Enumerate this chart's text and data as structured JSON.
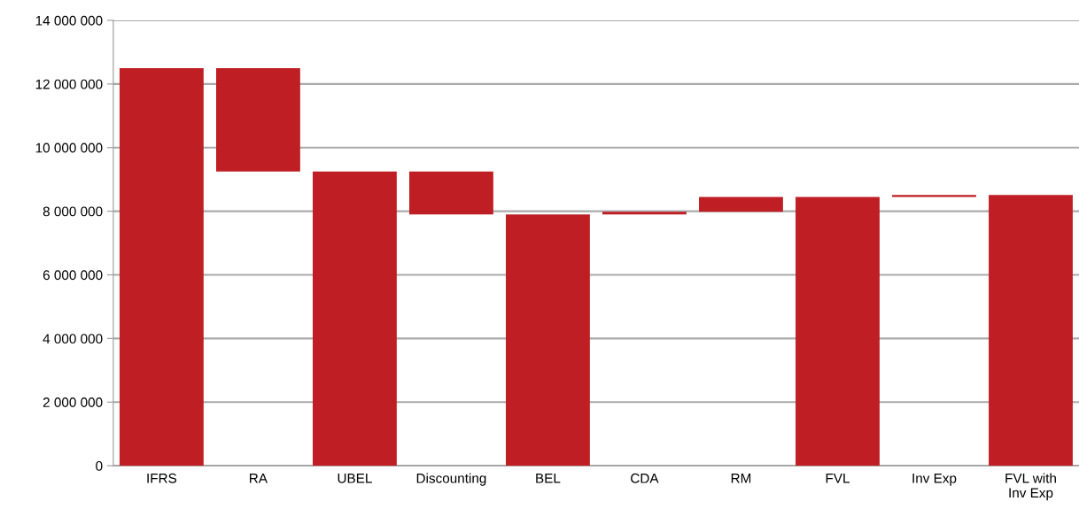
{
  "chart_data": {
    "type": "bar",
    "categories": [
      "IFRS",
      "RA",
      "UBEL",
      "Discounting",
      "BEL",
      "CDA",
      "RM",
      "FVL",
      "Inv Exp",
      "FVL with\nInv Exp"
    ],
    "values": [
      12500000,
      3250000,
      9250000,
      1350000,
      7900000,
      80000,
      470000,
      8450000,
      60000,
      8510000
    ],
    "base": [
      0,
      9250000,
      0,
      7900000,
      0,
      7900000,
      7980000,
      0,
      8450000,
      0
    ],
    "color": "#be1e24",
    "ylim": [
      0,
      14000000
    ],
    "yticks": [
      {
        "value": 0,
        "label": "0"
      },
      {
        "value": 2000000,
        "label": "2 000 000"
      },
      {
        "value": 4000000,
        "label": "4 000 000"
      },
      {
        "value": 6000000,
        "label": "6 000 000"
      },
      {
        "value": 8000000,
        "label": "8 000 000"
      },
      {
        "value": 10000000,
        "label": "10 000 000"
      },
      {
        "value": 12000000,
        "label": "12 000 000"
      },
      {
        "value": 14000000,
        "label": "14 000 000"
      }
    ],
    "grid": "y"
  }
}
